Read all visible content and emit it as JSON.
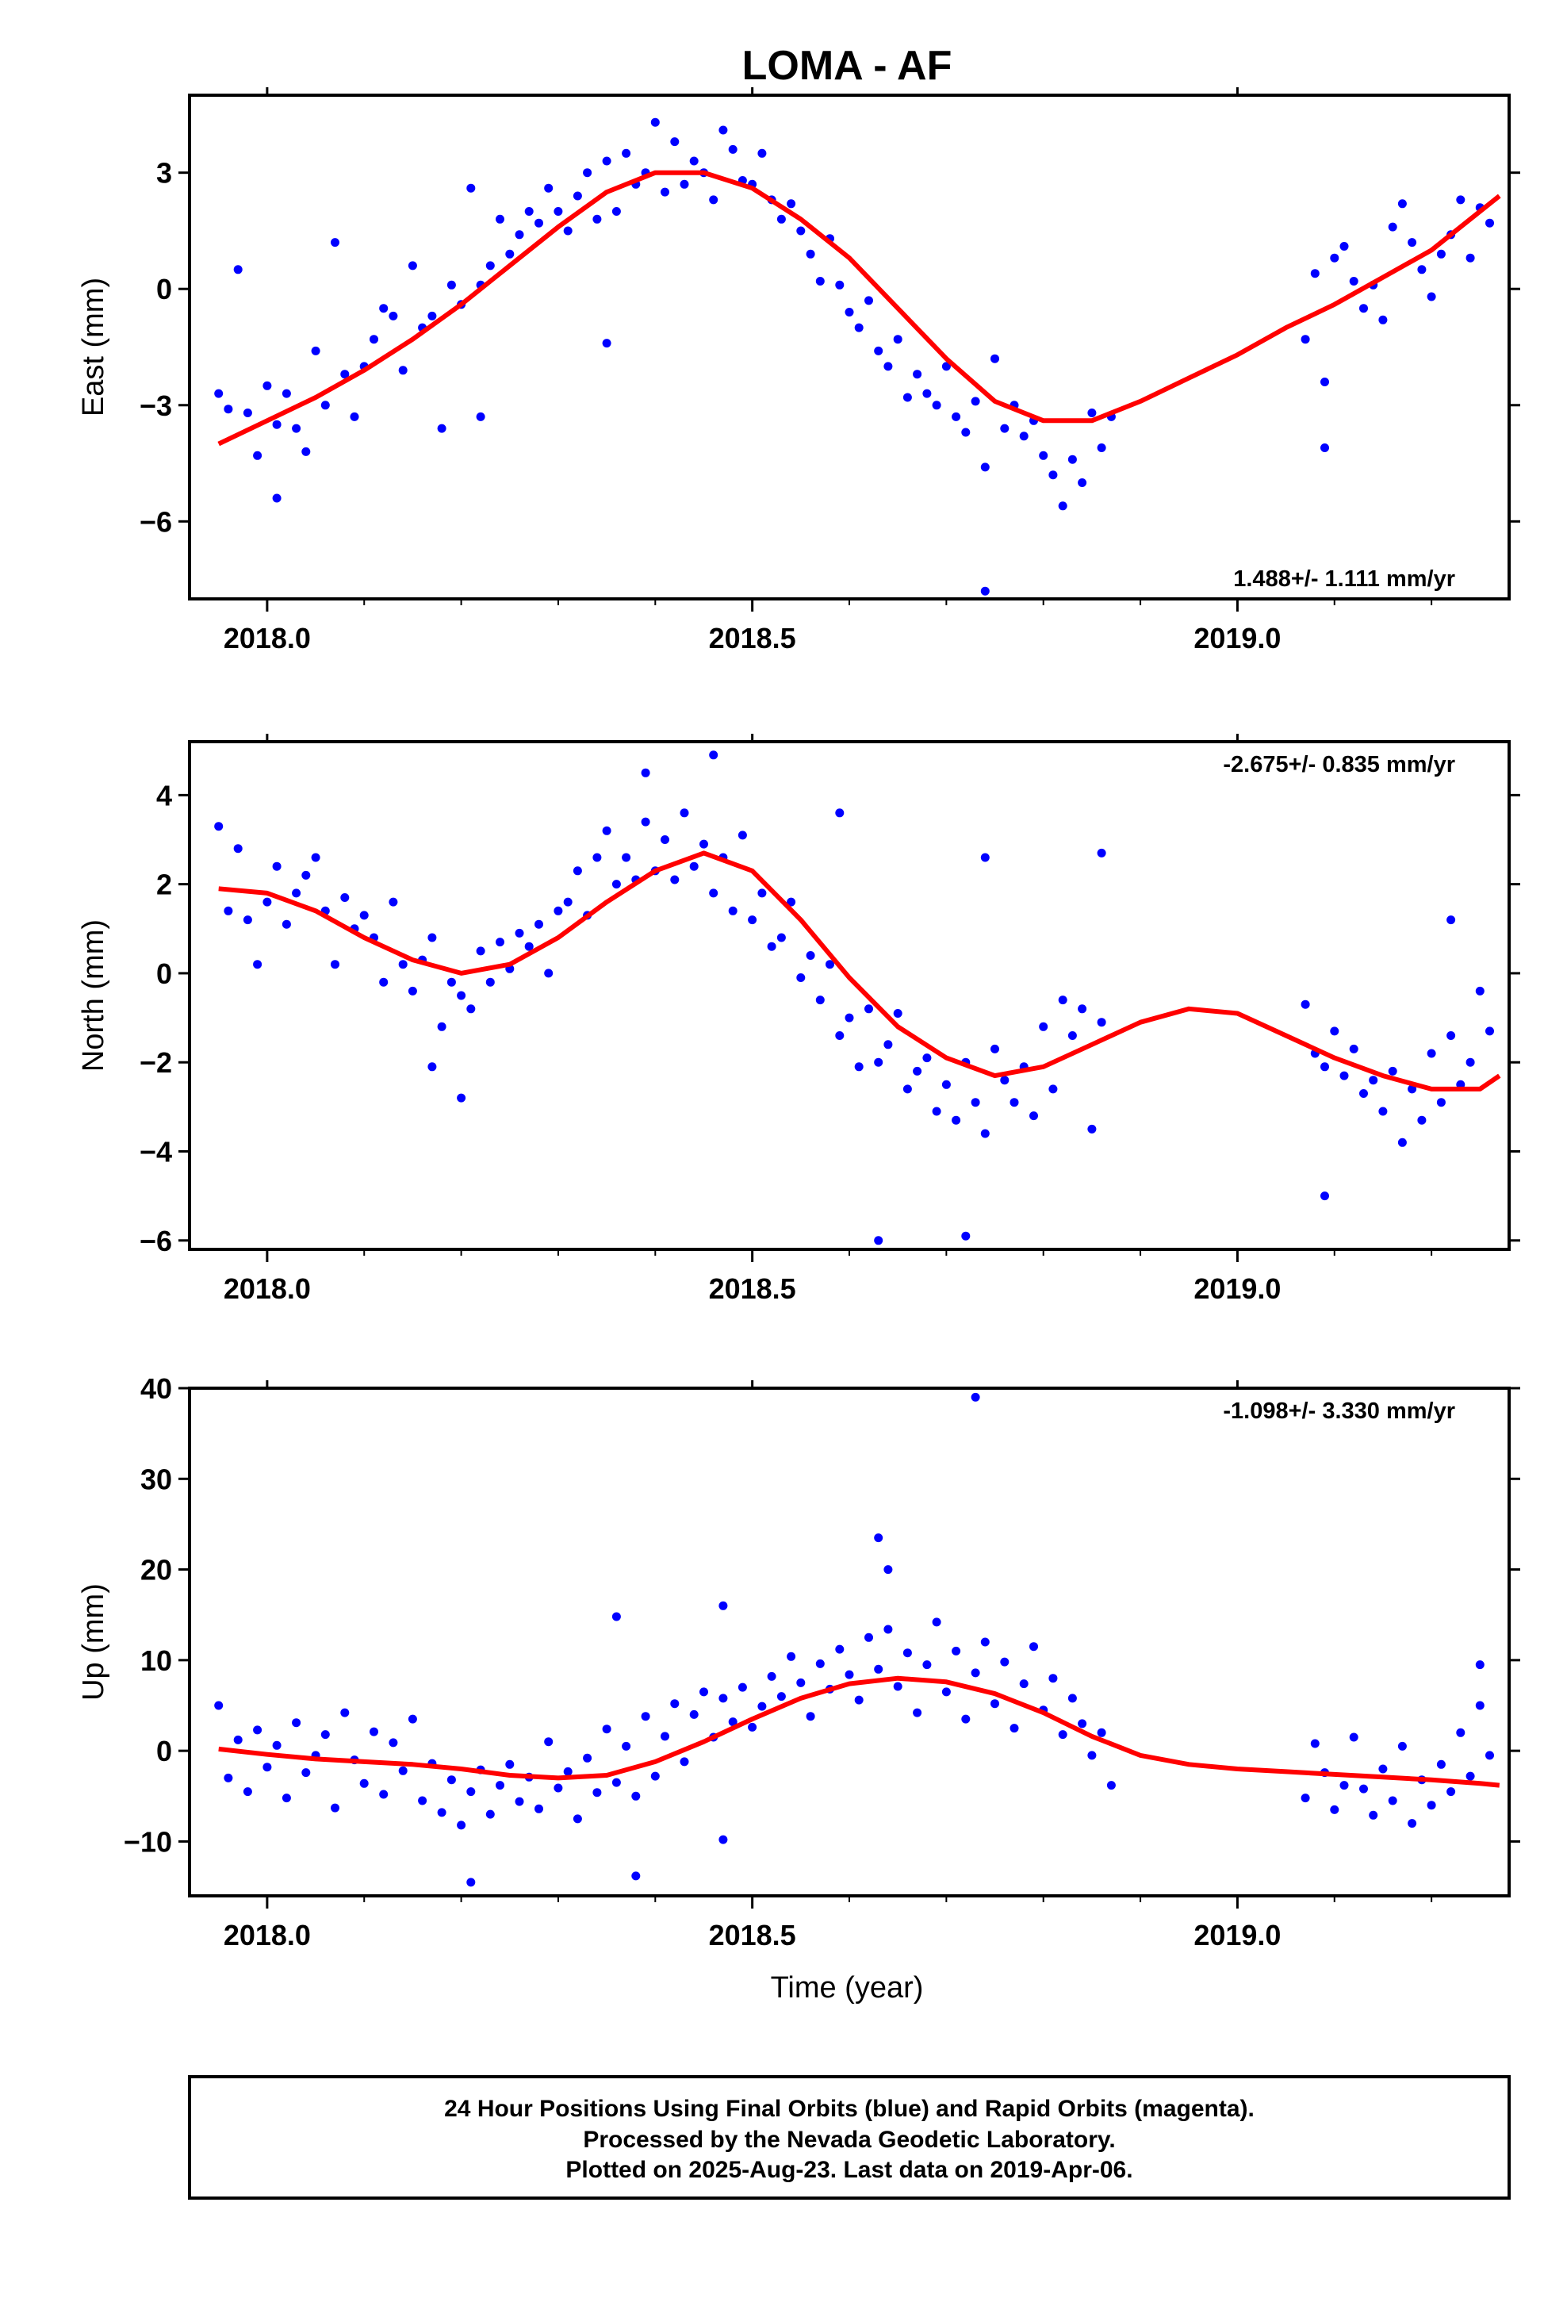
{
  "title": "LOMA - AF",
  "footer": {
    "line1": "24 Hour Positions Using Final Orbits (blue) and Rapid Orbits (magenta).",
    "line2": "Processed by the Nevada Geodetic Laboratory.",
    "line3": "Plotted on 2025-Aug-23. Last data on 2019-Apr-06."
  },
  "xlabel": "Time (year)",
  "colors": {
    "points": "#0000ff",
    "model": "#ff0000",
    "frame": "#000000"
  },
  "chart_data": [
    {
      "type": "scatter",
      "component": "east",
      "ylabel": "East (mm)",
      "rate_label": "1.488+/- 1.111 mm/yr",
      "xlim": [
        2017.92,
        2019.28
      ],
      "ylim": [
        -8,
        5
      ],
      "xticks": [
        2018.0,
        2018.5,
        2019.0
      ],
      "xtick_labels": [
        "2018.0",
        "2018.5",
        "2019.0"
      ],
      "yticks": [
        -6,
        -3,
        0,
        3
      ],
      "ytick_labels": [
        "−6",
        "−3",
        "0",
        "3"
      ],
      "grid": false,
      "model": {
        "x": [
          2017.95,
          2018.0,
          2018.05,
          2018.1,
          2018.15,
          2018.2,
          2018.25,
          2018.3,
          2018.35,
          2018.4,
          2018.45,
          2018.5,
          2018.55,
          2018.6,
          2018.65,
          2018.7,
          2018.75,
          2018.8,
          2018.85,
          2018.9,
          2018.95,
          2019.0,
          2019.05,
          2019.1,
          2019.15,
          2019.2,
          2019.25,
          2019.27
        ],
        "y": [
          -4.0,
          -3.4,
          -2.8,
          -2.1,
          -1.3,
          -0.4,
          0.6,
          1.6,
          2.5,
          3.0,
          3.0,
          2.6,
          1.8,
          0.8,
          -0.5,
          -1.8,
          -2.9,
          -3.4,
          -3.4,
          -2.9,
          -2.3,
          -1.7,
          -1.0,
          -0.4,
          0.3,
          1.0,
          2.0,
          2.4
        ]
      },
      "points": {
        "x": [
          2017.95,
          2017.96,
          2017.97,
          2017.98,
          2017.99,
          2018.0,
          2018.01,
          2018.02,
          2018.03,
          2018.04,
          2018.05,
          2018.06,
          2018.07,
          2018.08,
          2018.09,
          2018.1,
          2018.11,
          2018.12,
          2018.13,
          2018.14,
          2018.15,
          2018.16,
          2018.17,
          2018.18,
          2018.19,
          2018.2,
          2018.21,
          2018.22,
          2018.23,
          2018.24,
          2018.25,
          2018.26,
          2018.27,
          2018.28,
          2018.29,
          2018.3,
          2018.31,
          2018.32,
          2018.33,
          2018.34,
          2018.35,
          2018.36,
          2018.37,
          2018.38,
          2018.39,
          2018.4,
          2018.41,
          2018.42,
          2018.43,
          2018.44,
          2018.45,
          2018.46,
          2018.47,
          2018.48,
          2018.49,
          2018.5,
          2018.51,
          2018.52,
          2018.53,
          2018.54,
          2018.55,
          2018.56,
          2018.57,
          2018.58,
          2018.59,
          2018.6,
          2018.61,
          2018.62,
          2018.63,
          2018.64,
          2018.65,
          2018.66,
          2018.67,
          2018.68,
          2018.69,
          2018.7,
          2018.71,
          2018.72,
          2018.73,
          2018.74,
          2018.75,
          2018.76,
          2018.77,
          2018.78,
          2018.79,
          2018.8,
          2018.81,
          2018.82,
          2018.83,
          2018.84,
          2018.85,
          2018.86,
          2018.87,
          2019.07,
          2019.08,
          2019.09,
          2019.1,
          2019.11,
          2019.12,
          2019.13,
          2019.14,
          2019.15,
          2019.16,
          2019.17,
          2019.18,
          2019.19,
          2019.2,
          2019.21,
          2019.22,
          2019.23,
          2019.24,
          2019.25,
          2019.26
        ],
        "y": [
          -2.7,
          -3.1,
          0.5,
          -3.2,
          -4.3,
          -2.5,
          -3.5,
          -2.7,
          -3.6,
          -4.2,
          -1.6,
          -3.0,
          1.2,
          -2.2,
          -3.3,
          -2.0,
          -1.3,
          -0.5,
          -0.7,
          -2.1,
          0.6,
          -1.0,
          -0.7,
          -3.6,
          0.1,
          -0.4,
          2.6,
          0.1,
          0.6,
          1.8,
          0.9,
          1.4,
          2.0,
          1.7,
          2.6,
          2.0,
          1.5,
          2.4,
          3.0,
          1.8,
          3.3,
          2.0,
          3.5,
          2.7,
          3.0,
          4.3,
          2.5,
          3.8,
          2.7,
          3.3,
          3.0,
          2.3,
          4.1,
          3.6,
          2.8,
          2.7,
          3.5,
          2.3,
          1.8,
          2.2,
          1.5,
          0.9,
          0.2,
          1.3,
          0.1,
          -0.6,
          -1.0,
          -0.3,
          -1.6,
          -2.0,
          -1.3,
          -2.8,
          -2.2,
          -2.7,
          -3.0,
          -2.0,
          -3.3,
          -3.7,
          -2.9,
          -4.6,
          -1.8,
          -3.6,
          -3.0,
          -3.8,
          -3.4,
          -4.3,
          -4.8,
          -5.6,
          -4.4,
          -5.0,
          -3.2,
          -4.1,
          -3.3,
          -1.3,
          0.4,
          -2.4,
          0.8,
          1.1,
          0.2,
          -0.5,
          0.1,
          -0.8,
          1.6,
          2.2,
          1.2,
          0.5,
          -0.2,
          0.9,
          1.4,
          2.3,
          0.8,
          2.1,
          1.7
        ],
        "outliers": {
          "x": [
            2018.74,
            2018.35,
            2018.22,
            2019.09,
            2018.01
          ],
          "y": [
            -7.8,
            -1.4,
            -3.3,
            -4.1,
            -5.4
          ]
        }
      }
    },
    {
      "type": "scatter",
      "component": "north",
      "ylabel": "North (mm)",
      "rate_label": "-2.675+/- 0.835 mm/yr",
      "xlim": [
        2017.92,
        2019.28
      ],
      "ylim": [
        -6.2,
        5.2
      ],
      "xticks": [
        2018.0,
        2018.5,
        2019.0
      ],
      "xtick_labels": [
        "2018.0",
        "2018.5",
        "2019.0"
      ],
      "yticks": [
        -6,
        -4,
        -2,
        0,
        2,
        4
      ],
      "ytick_labels": [
        "−6",
        "−4",
        "−2",
        "0",
        "2",
        "4"
      ],
      "grid": false,
      "model": {
        "x": [
          2017.95,
          2018.0,
          2018.05,
          2018.1,
          2018.15,
          2018.2,
          2018.25,
          2018.3,
          2018.35,
          2018.4,
          2018.45,
          2018.5,
          2018.55,
          2018.6,
          2018.65,
          2018.7,
          2018.75,
          2018.8,
          2018.85,
          2018.9,
          2018.95,
          2019.0,
          2019.05,
          2019.1,
          2019.15,
          2019.2,
          2019.25,
          2019.27
        ],
        "y": [
          1.9,
          1.8,
          1.4,
          0.8,
          0.3,
          0.0,
          0.2,
          0.8,
          1.6,
          2.3,
          2.7,
          2.3,
          1.2,
          -0.1,
          -1.2,
          -1.9,
          -2.3,
          -2.1,
          -1.6,
          -1.1,
          -0.8,
          -0.9,
          -1.4,
          -1.9,
          -2.3,
          -2.6,
          -2.6,
          -2.3
        ]
      },
      "points": {
        "x": [
          2017.95,
          2017.96,
          2017.97,
          2017.98,
          2017.99,
          2018.0,
          2018.01,
          2018.02,
          2018.03,
          2018.04,
          2018.05,
          2018.06,
          2018.07,
          2018.08,
          2018.09,
          2018.1,
          2018.11,
          2018.12,
          2018.13,
          2018.14,
          2018.15,
          2018.16,
          2018.17,
          2018.18,
          2018.19,
          2018.2,
          2018.21,
          2018.22,
          2018.23,
          2018.24,
          2018.25,
          2018.26,
          2018.27,
          2018.28,
          2018.29,
          2018.3,
          2018.31,
          2018.32,
          2018.33,
          2018.34,
          2018.35,
          2018.36,
          2018.37,
          2018.38,
          2018.39,
          2018.4,
          2018.41,
          2018.42,
          2018.43,
          2018.44,
          2018.45,
          2018.46,
          2018.47,
          2018.48,
          2018.49,
          2018.5,
          2018.51,
          2018.52,
          2018.53,
          2018.54,
          2018.55,
          2018.56,
          2018.57,
          2018.58,
          2018.59,
          2018.6,
          2018.61,
          2018.62,
          2018.63,
          2018.64,
          2018.65,
          2018.66,
          2018.67,
          2018.68,
          2018.69,
          2018.7,
          2018.71,
          2018.72,
          2018.73,
          2018.74,
          2018.75,
          2018.76,
          2018.77,
          2018.78,
          2018.79,
          2018.8,
          2018.81,
          2018.82,
          2018.83,
          2018.84,
          2018.85,
          2018.86,
          2019.07,
          2019.08,
          2019.09,
          2019.1,
          2019.11,
          2019.12,
          2019.13,
          2019.14,
          2019.15,
          2019.16,
          2019.17,
          2019.18,
          2019.19,
          2019.2,
          2019.21,
          2019.22,
          2019.23,
          2019.24,
          2019.25,
          2019.26
        ],
        "y": [
          3.3,
          1.4,
          2.8,
          1.2,
          0.2,
          1.6,
          2.4,
          1.1,
          1.8,
          2.2,
          2.6,
          1.4,
          0.2,
          1.7,
          1.0,
          1.3,
          0.8,
          -0.2,
          1.6,
          0.2,
          -0.4,
          0.3,
          0.8,
          -1.2,
          -0.2,
          -0.5,
          -0.8,
          0.5,
          -0.2,
          0.7,
          0.1,
          0.9,
          0.6,
          1.1,
          0.0,
          1.4,
          1.6,
          2.3,
          1.3,
          2.6,
          3.2,
          2.0,
          2.6,
          2.1,
          3.4,
          2.3,
          3.0,
          2.1,
          3.6,
          2.4,
          2.9,
          1.8,
          2.6,
          1.4,
          3.1,
          1.2,
          1.8,
          0.6,
          0.8,
          1.6,
          -0.1,
          0.4,
          -0.6,
          0.2,
          -1.4,
          -1.0,
          -2.1,
          -0.8,
          -2.0,
          -1.6,
          -0.9,
          -2.6,
          -2.2,
          -1.9,
          -3.1,
          -2.5,
          -3.3,
          -2.0,
          -2.9,
          -3.6,
          -1.7,
          -2.4,
          -2.9,
          -2.1,
          -3.2,
          -1.2,
          -2.6,
          -0.6,
          -1.4,
          -0.8,
          -3.5,
          -1.1,
          -0.7,
          -1.8,
          -2.1,
          -1.3,
          -2.3,
          -1.7,
          -2.7,
          -2.4,
          -3.1,
          -2.2,
          -3.8,
          -2.6,
          -3.3,
          -1.8,
          -2.9,
          -1.4,
          -2.5,
          -2.0,
          -0.4,
          -1.3
        ],
        "outliers": {
          "x": [
            2018.63,
            2018.72,
            2019.09,
            2018.74,
            2018.86,
            2018.46,
            2018.39,
            2019.22,
            2018.17,
            2018.2,
            2018.59
          ],
          "y": [
            -6.0,
            -5.9,
            -5.0,
            2.6,
            2.7,
            4.9,
            4.5,
            1.2,
            -2.1,
            -2.8,
            3.6
          ]
        }
      }
    },
    {
      "type": "scatter",
      "component": "up",
      "ylabel": "Up (mm)",
      "rate_label": "-1.098+/- 3.330 mm/yr",
      "xlim": [
        2017.92,
        2019.28
      ],
      "ylim": [
        -16,
        40
      ],
      "xticks": [
        2018.0,
        2018.5,
        2019.0
      ],
      "xtick_labels": [
        "2018.0",
        "2018.5",
        "2019.0"
      ],
      "yticks": [
        -10,
        0,
        10,
        20,
        30,
        40
      ],
      "ytick_labels": [
        "−10",
        "0",
        "10",
        "20",
        "30",
        "40"
      ],
      "grid": false,
      "model": {
        "x": [
          2017.95,
          2018.0,
          2018.05,
          2018.1,
          2018.15,
          2018.2,
          2018.25,
          2018.3,
          2018.35,
          2018.4,
          2018.45,
          2018.5,
          2018.55,
          2018.6,
          2018.65,
          2018.7,
          2018.75,
          2018.8,
          2018.85,
          2018.9,
          2018.95,
          2019.0,
          2019.05,
          2019.1,
          2019.15,
          2019.2,
          2019.25,
          2019.27
        ],
        "y": [
          0.2,
          -0.4,
          -0.9,
          -1.2,
          -1.5,
          -2.0,
          -2.7,
          -3.0,
          -2.7,
          -1.2,
          1.0,
          3.5,
          5.8,
          7.4,
          8.0,
          7.6,
          6.3,
          4.2,
          1.6,
          -0.5,
          -1.5,
          -2.0,
          -2.3,
          -2.6,
          -2.9,
          -3.2,
          -3.6,
          -3.8
        ]
      },
      "points": {
        "x": [
          2017.95,
          2017.96,
          2017.97,
          2017.98,
          2017.99,
          2018.0,
          2018.01,
          2018.02,
          2018.03,
          2018.04,
          2018.05,
          2018.06,
          2018.07,
          2018.08,
          2018.09,
          2018.1,
          2018.11,
          2018.12,
          2018.13,
          2018.14,
          2018.15,
          2018.16,
          2018.17,
          2018.18,
          2018.19,
          2018.2,
          2018.21,
          2018.22,
          2018.23,
          2018.24,
          2018.25,
          2018.26,
          2018.27,
          2018.28,
          2018.29,
          2018.3,
          2018.31,
          2018.32,
          2018.33,
          2018.34,
          2018.35,
          2018.36,
          2018.37,
          2018.38,
          2018.39,
          2018.4,
          2018.41,
          2018.42,
          2018.43,
          2018.44,
          2018.45,
          2018.46,
          2018.47,
          2018.48,
          2018.49,
          2018.5,
          2018.51,
          2018.52,
          2018.53,
          2018.54,
          2018.55,
          2018.56,
          2018.57,
          2018.58,
          2018.59,
          2018.6,
          2018.61,
          2018.62,
          2018.63,
          2018.64,
          2018.65,
          2018.66,
          2018.67,
          2018.68,
          2018.69,
          2018.7,
          2018.71,
          2018.72,
          2018.73,
          2018.74,
          2018.75,
          2018.76,
          2018.77,
          2018.78,
          2018.79,
          2018.8,
          2018.81,
          2018.82,
          2018.83,
          2018.84,
          2018.85,
          2018.86,
          2019.07,
          2019.08,
          2019.09,
          2019.1,
          2019.11,
          2019.12,
          2019.13,
          2019.14,
          2019.15,
          2019.16,
          2019.17,
          2019.18,
          2019.19,
          2019.2,
          2019.21,
          2019.22,
          2019.23,
          2019.24,
          2019.25,
          2019.26
        ],
        "y": [
          5.0,
          -3.0,
          1.2,
          -4.5,
          2.3,
          -1.8,
          0.6,
          -5.2,
          3.1,
          -2.4,
          -0.5,
          1.8,
          -6.3,
          4.2,
          -1.0,
          -3.6,
          2.1,
          -4.8,
          0.9,
          -2.2,
          3.5,
          -5.5,
          -1.4,
          -6.8,
          -3.2,
          -8.2,
          -4.5,
          -2.1,
          -7.0,
          -3.8,
          -1.5,
          -5.6,
          -2.9,
          -6.4,
          1.0,
          -4.1,
          -2.3,
          -7.5,
          -0.8,
          -4.6,
          2.4,
          -3.5,
          0.5,
          -5.0,
          3.8,
          -2.8,
          1.6,
          5.2,
          -1.2,
          4.0,
          6.5,
          1.5,
          5.8,
          3.2,
          7.0,
          2.6,
          4.9,
          8.2,
          6.0,
          10.4,
          7.5,
          3.8,
          9.6,
          6.8,
          11.2,
          8.4,
          5.6,
          12.5,
          9.0,
          13.4,
          7.1,
          10.8,
          4.2,
          9.5,
          14.2,
          6.5,
          11.0,
          3.5,
          8.6,
          12.0,
          5.2,
          9.8,
          2.5,
          7.4,
          11.5,
          4.5,
          8.0,
          1.8,
          5.8,
          3.0,
          -0.5,
          2.0,
          -5.2,
          0.8,
          -2.4,
          -6.5,
          -3.8,
          1.5,
          -4.2,
          -7.1,
          -2.0,
          -5.5,
          0.5,
          -8.0,
          -3.2,
          -6.0,
          -1.5,
          -4.5,
          2.0,
          -2.8,
          5.0,
          -0.5
        ],
        "outliers": {
          "x": [
            2018.73,
            2018.63,
            2018.64,
            2018.36,
            2018.38,
            2018.47,
            2018.21,
            2019.25,
            2018.47,
            2018.87
          ],
          "y": [
            39.0,
            23.5,
            20.0,
            14.8,
            -13.8,
            16.0,
            -14.5,
            9.5,
            -9.8,
            -3.8
          ]
        }
      }
    }
  ]
}
